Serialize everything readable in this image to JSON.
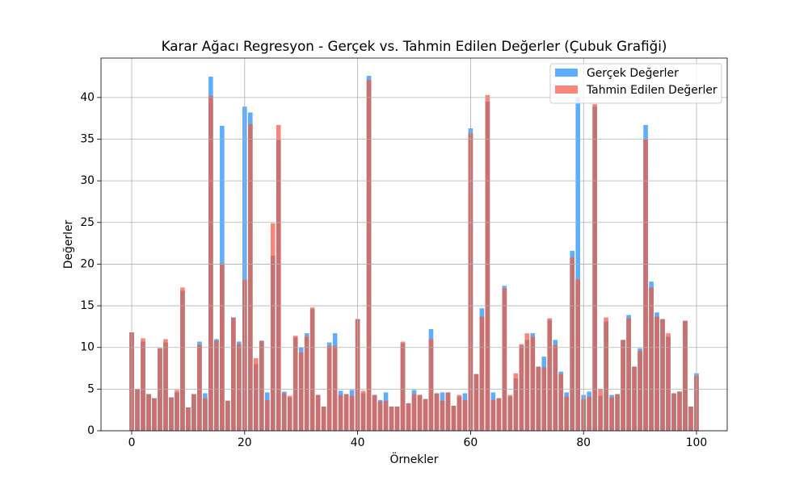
{
  "chart_data": {
    "type": "bar",
    "title": "Karar Ağacı Regresyon - Gerçek vs. Tahmin Edilen Değerler (Çubuk Grafiği)",
    "xlabel": "Örnekler",
    "ylabel": "Değerler",
    "x": [
      0,
      1,
      2,
      3,
      4,
      5,
      6,
      7,
      8,
      9,
      10,
      11,
      12,
      13,
      14,
      15,
      16,
      17,
      18,
      19,
      20,
      21,
      22,
      23,
      24,
      25,
      26,
      27,
      28,
      29,
      30,
      31,
      32,
      33,
      34,
      35,
      36,
      37,
      38,
      39,
      40,
      41,
      42,
      43,
      44,
      45,
      46,
      47,
      48,
      49,
      50,
      51,
      52,
      53,
      54,
      55,
      56,
      57,
      58,
      59,
      60,
      61,
      62,
      63,
      64,
      65,
      66,
      67,
      68,
      69,
      70,
      71,
      72,
      73,
      74,
      75,
      76,
      77,
      78,
      79,
      80,
      81,
      82,
      83,
      84,
      85,
      86,
      87,
      88,
      89,
      90,
      91,
      92,
      93,
      94,
      95,
      96,
      97,
      98,
      99,
      100
    ],
    "series": [
      {
        "name": "Gerçek Değerler",
        "color": "#5EAEFF",
        "values": [
          11.8,
          5.0,
          10.7,
          4.4,
          3.9,
          9.9,
          10.6,
          4.0,
          4.6,
          16.8,
          2.8,
          4.4,
          10.7,
          4.5,
          42.5,
          11.0,
          36.6,
          3.6,
          13.6,
          10.7,
          38.9,
          38.2,
          8.0,
          10.8,
          4.6,
          21.0,
          34.9,
          4.7,
          4.0,
          11.2,
          10.0,
          11.7,
          14.6,
          4.3,
          2.9,
          10.6,
          11.7,
          4.8,
          4.4,
          4.9,
          13.4,
          4.5,
          42.6,
          4.3,
          3.7,
          4.6,
          2.9,
          2.9,
          10.5,
          3.3,
          4.9,
          4.3,
          3.8,
          12.2,
          4.5,
          4.6,
          4.6,
          3.0,
          4.1,
          4.5,
          36.3,
          6.8,
          14.7,
          39.5,
          4.6,
          3.9,
          17.4,
          4.1,
          6.3,
          10.2,
          10.9,
          11.7,
          7.7,
          8.9,
          13.3,
          10.9,
          7.1,
          4.6,
          21.6,
          40.0,
          4.3,
          4.7,
          38.9,
          4.2,
          13.1,
          4.3,
          4.4,
          10.9,
          13.9,
          7.7,
          9.9,
          36.7,
          17.9,
          14.2,
          13.4,
          11.3,
          4.5,
          4.7,
          13.2,
          2.9,
          6.9
        ]
      },
      {
        "name": "Tahmin Edilen Değerler",
        "color": "#F8877B",
        "values": [
          11.8,
          5.0,
          11.1,
          4.4,
          3.9,
          9.9,
          11.0,
          4.0,
          4.9,
          17.2,
          2.8,
          4.4,
          10.3,
          3.9,
          40.2,
          10.8,
          20.1,
          3.6,
          13.6,
          10.4,
          18.1,
          36.8,
          8.7,
          10.8,
          3.7,
          24.9,
          36.7,
          4.5,
          4.2,
          11.4,
          9.4,
          11.3,
          14.8,
          4.3,
          2.9,
          10.2,
          10.2,
          4.3,
          4.4,
          4.2,
          13.4,
          4.8,
          42.1,
          4.3,
          3.5,
          3.6,
          2.9,
          2.9,
          10.7,
          3.3,
          4.4,
          4.3,
          3.8,
          11.0,
          4.5,
          3.6,
          4.6,
          3.0,
          4.3,
          3.7,
          35.7,
          6.8,
          13.7,
          40.3,
          3.7,
          3.9,
          17.1,
          4.3,
          6.9,
          10.4,
          11.7,
          11.3,
          7.7,
          7.6,
          13.5,
          10.3,
          6.8,
          4.1,
          20.8,
          18.2,
          3.8,
          4.1,
          39.2,
          5.0,
          13.6,
          4.0,
          4.4,
          10.9,
          13.5,
          7.7,
          9.6,
          35.0,
          17.2,
          13.7,
          13.4,
          11.7,
          4.5,
          4.7,
          13.2,
          2.9,
          6.6
        ]
      }
    ],
    "overlap_color": "#C87171",
    "xlim": [
      -5.44,
      105.44
    ],
    "ylim": [
      0,
      44.73
    ],
    "xticks": [
      0,
      20,
      40,
      60,
      80,
      100
    ],
    "yticks": [
      0,
      5,
      10,
      15,
      20,
      25,
      30,
      35,
      40
    ],
    "grid": true,
    "legend": "upper right"
  }
}
